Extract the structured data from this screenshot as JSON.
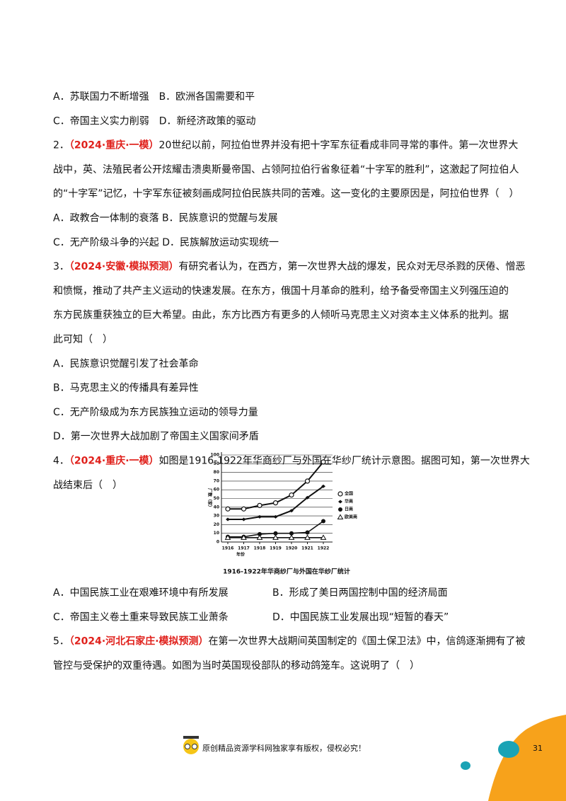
{
  "section1": [
    {
      "text": "A．苏联国力不断增强　B．欧洲各国需要和平"
    },
    {
      "text": "C．帝国主义实力削弱　D．新经济政策的驱动"
    },
    {
      "number": "2．",
      "source": "（2024·重庆·一模）",
      "text": "20世纪以前，阿拉伯世界并没有把十字军东征看成非同寻常的事件。第一次世界大"
    },
    {
      "text": "战中，英、法殖民者公开炫耀击溃奥斯曼帝国、占领阿拉伯行省象征着“十字军的胜利”，这激起了阿拉伯人"
    },
    {
      "text": "的“十字军”记忆，十字军东征被刻画成阿拉伯民族共同的苦难。这一变化的主要原因是，阿拉伯世界（　）"
    },
    {
      "text": "A．政教合一体制的衰落 B．民族意识的觉醒与发展"
    },
    {
      "text": "C．无产阶级斗争的兴起 D．民族解放运动实现统一"
    },
    {
      "number": "3．",
      "source": "（2024·安徽·模拟预测）",
      "text": "有研究者认为，在西方，第一次世界大战的爆发，民众对无尽杀戮的厌倦、憎恶"
    },
    {
      "text": "和愤慨，推动了共产主义运动的快速发展。在东方，俄国十月革命的胜利，给予备受帝国主义列强压迫的"
    },
    {
      "text": "东方民族重获独立的巨大希望。由此，东方比西方有更多的人倾听马克思主义对资本主义体系的批判。据"
    },
    {
      "text": "此可知（　）"
    },
    {
      "text": "A．民族意识觉醒引发了社会革命"
    },
    {
      "text": "B．马克思主义的传播具有差异性"
    },
    {
      "text": "C．无产阶级成为东方民族独立运动的领导力量"
    },
    {
      "text": "D．第一次世界大战加剧了帝国主义国家间矛盾"
    },
    {
      "number": "4．",
      "source": "（2024·重庆·一模）",
      "text": "如图是1916-1922年华商纱厂与外国在华纱厂统计示意图。据图可知，第一次世界大"
    },
    {
      "text": "战结束后（　）"
    }
  ],
  "chart_data": {
    "type": "line",
    "caption": "1916-1922年华商纱厂与外国在华纱厂统计",
    "ylabel": "厂数（家）",
    "xlabel": "年份",
    "x": [
      1916,
      1917,
      1918,
      1919,
      1920,
      1921,
      1922
    ],
    "xlim": [
      1916,
      1922
    ],
    "xticks": [
      1916,
      1917,
      1918,
      1919,
      1920,
      1921,
      1922
    ],
    "ylim": [
      0,
      100
    ],
    "yticks": [
      0,
      10,
      20,
      30,
      40,
      50,
      60,
      70,
      80,
      90,
      100
    ],
    "grid": true,
    "series": [
      {
        "name": "全国",
        "color": "#111111",
        "marker": "open-circle",
        "values": [
          38,
          38,
          42,
          45,
          54,
          70,
          92
        ]
      },
      {
        "name": "华商",
        "color": "#111111",
        "marker": "diamond",
        "values": [
          26,
          26,
          29,
          29,
          36,
          51,
          64
        ]
      },
      {
        "name": "日商",
        "color": "#111111",
        "marker": "filled-circle",
        "values": [
          6,
          6,
          9,
          10,
          10,
          11,
          24
        ]
      },
      {
        "name": "欧美商",
        "color": "#111111",
        "marker": "open-triangle",
        "values": [
          5,
          5,
          5,
          5,
          5,
          5,
          5
        ]
      }
    ]
  },
  "section2": [
    {
      "left": "A．中国民族工业在艰难环境中有所发展",
      "right": "B．形成了美日两国控制中国的经济局面"
    },
    {
      "left": "C．帝国主义卷土重来导致民族工业萧条",
      "right": "D．中国民族工业发展出现“短暂的春天”"
    },
    {
      "number": "5．",
      "source": "（2024·河北石家庄·模拟预测）",
      "text": "在第一次世界大战期间英国制定的《国土保卫法》中，信鸽逐渐拥有了被"
    },
    {
      "text": "管控与受保护的双重待遇。如图为当时英国现役部队的移动鸽笼车。这说明了（　）"
    }
  ],
  "footer": {
    "notice": "原创精品资源学科网独家享有版权，侵权必究！",
    "page_number": 31
  }
}
